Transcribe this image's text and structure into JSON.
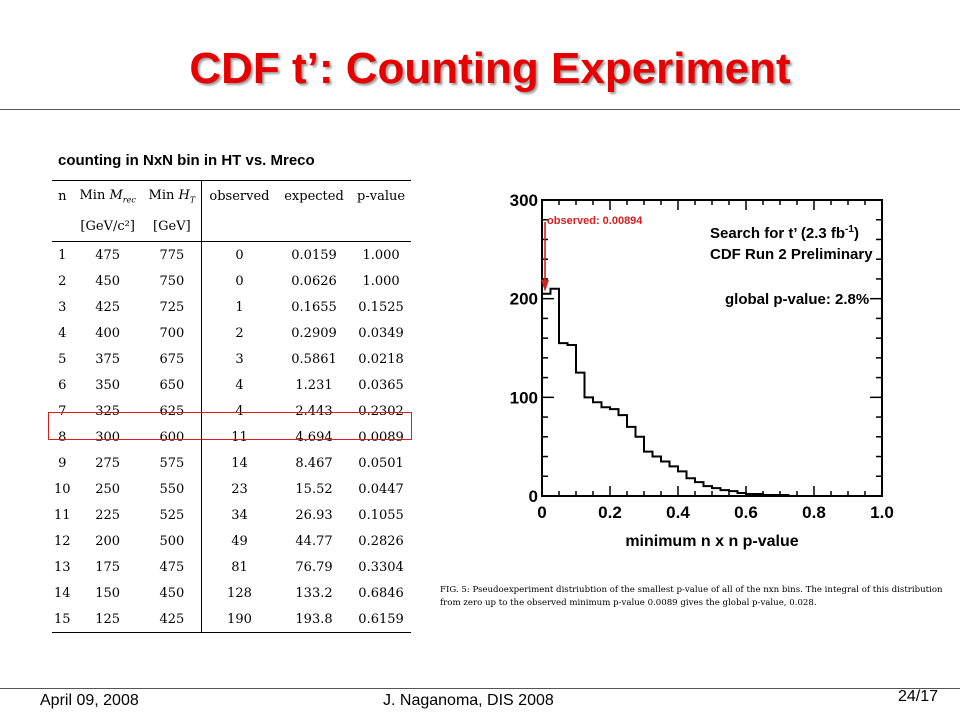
{
  "slide": {
    "title": "CDF t’: Counting Experiment",
    "subtitle": "counting in NxN bin in HT vs. Mreco",
    "caption": "FIG. 5: Pseudoexperiment distriubtion of the smallest p-value of all of the nxn bins.  The integral of this distribution from zero up to the observed minimum p-value 0.0089 gives the global p-value, 0.028.",
    "footer": {
      "date": "April 09, 2008",
      "author": "J. Naganoma, DIS 2008",
      "page": "24/17"
    }
  },
  "table": {
    "headers": {
      "n": "n",
      "mrec_min": "Min",
      "mrec_var": "M",
      "mrec_sub": "rec",
      "ht_min": "Min",
      "ht_var": "H",
      "ht_sub": "T",
      "observed": "observed",
      "expected": "expected",
      "pvalue": "p-value",
      "mrec_unit": "[GeV/c²]",
      "ht_unit": "[GeV]"
    },
    "highlight_row": 8,
    "rows": [
      {
        "n": "1",
        "mrec": "475",
        "ht": "775",
        "observed": "0",
        "expected": "0.0159",
        "pvalue": "1.000"
      },
      {
        "n": "2",
        "mrec": "450",
        "ht": "750",
        "observed": "0",
        "expected": "0.0626",
        "pvalue": "1.000"
      },
      {
        "n": "3",
        "mrec": "425",
        "ht": "725",
        "observed": "1",
        "expected": "0.1655",
        "pvalue": "0.1525"
      },
      {
        "n": "4",
        "mrec": "400",
        "ht": "700",
        "observed": "2",
        "expected": "0.2909",
        "pvalue": "0.0349"
      },
      {
        "n": "5",
        "mrec": "375",
        "ht": "675",
        "observed": "3",
        "expected": "0.5861",
        "pvalue": "0.0218"
      },
      {
        "n": "6",
        "mrec": "350",
        "ht": "650",
        "observed": "4",
        "expected": "1.231",
        "pvalue": "0.0365"
      },
      {
        "n": "7",
        "mrec": "325",
        "ht": "625",
        "observed": "4",
        "expected": "2.443",
        "pvalue": "0.2302"
      },
      {
        "n": "8",
        "mrec": "300",
        "ht": "600",
        "observed": "11",
        "expected": "4.694",
        "pvalue": "0.0089"
      },
      {
        "n": "9",
        "mrec": "275",
        "ht": "575",
        "observed": "14",
        "expected": "8.467",
        "pvalue": "0.0501"
      },
      {
        "n": "10",
        "mrec": "250",
        "ht": "550",
        "observed": "23",
        "expected": "15.52",
        "pvalue": "0.0447"
      },
      {
        "n": "11",
        "mrec": "225",
        "ht": "525",
        "observed": "34",
        "expected": "26.93",
        "pvalue": "0.1055"
      },
      {
        "n": "12",
        "mrec": "200",
        "ht": "500",
        "observed": "49",
        "expected": "44.77",
        "pvalue": "0.2826"
      },
      {
        "n": "13",
        "mrec": "175",
        "ht": "475",
        "observed": "81",
        "expected": "76.79",
        "pvalue": "0.3304"
      },
      {
        "n": "14",
        "mrec": "150",
        "ht": "450",
        "observed": "128",
        "expected": "133.2",
        "pvalue": "0.6846"
      },
      {
        "n": "15",
        "mrec": "125",
        "ht": "425",
        "observed": "190",
        "expected": "193.8",
        "pvalue": "0.6159"
      }
    ]
  },
  "chart_data": {
    "type": "histogram",
    "xlabel": "minimum n x n p-value",
    "ylabel": "",
    "xlim": [
      0,
      1.0
    ],
    "ylim": [
      0,
      300
    ],
    "xticks": [
      "0",
      "0.2",
      "0.4",
      "0.6",
      "0.8",
      "1.0"
    ],
    "yticks": [
      "0",
      "100",
      "200",
      "300"
    ],
    "grid": false,
    "bin_width": 0.025,
    "counts": [
      205,
      210,
      155,
      153,
      125,
      100,
      95,
      90,
      88,
      82,
      70,
      60,
      45,
      40,
      35,
      30,
      25,
      18,
      14,
      10,
      8,
      6,
      5,
      3,
      2,
      2,
      1,
      1,
      1,
      0
    ],
    "annotations": {
      "observed": "observed: 0.00894",
      "observed_value": 0.00894,
      "search": "Search for t’  (2.3 fb",
      "search_sup": "-1",
      "search_close": ")",
      "run": "CDF Run 2 Preliminary",
      "global": "global p-value: 2.8%"
    },
    "colors": {
      "line": "#000000",
      "observed": "#d62020"
    }
  }
}
